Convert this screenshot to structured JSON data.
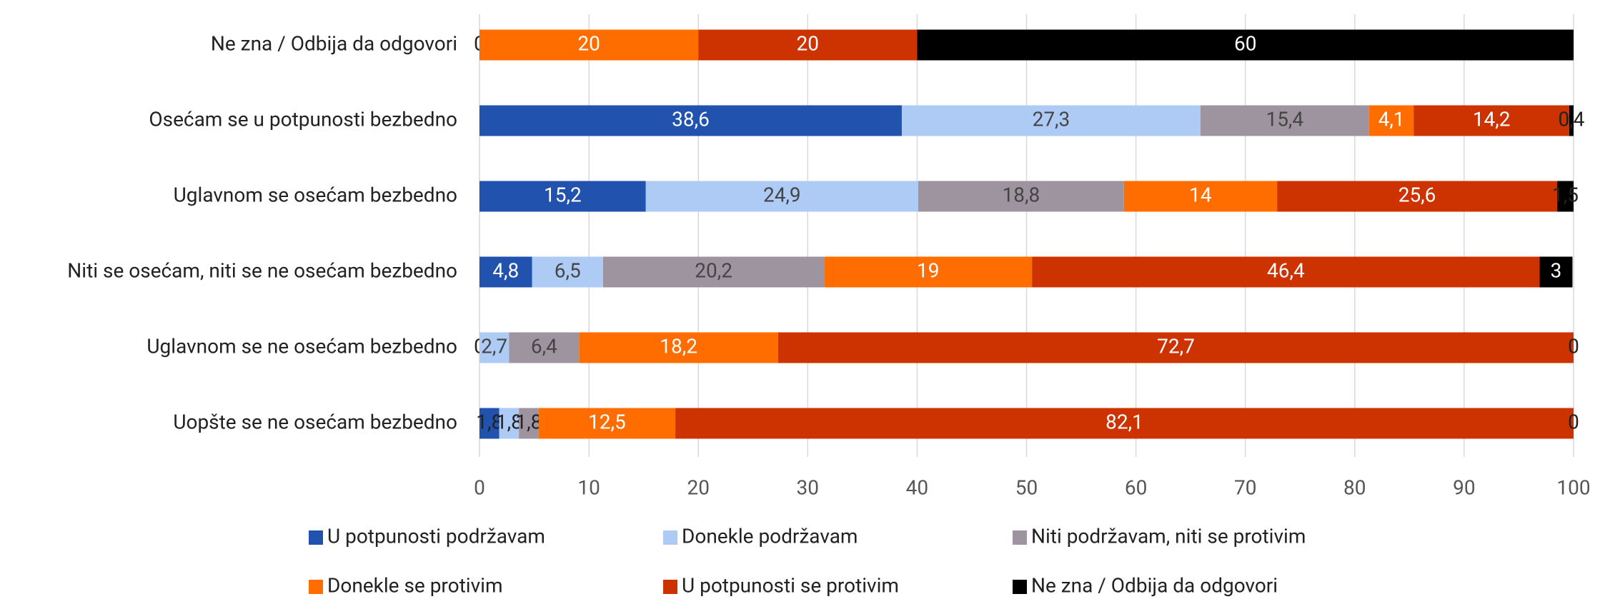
{
  "chart_data": {
    "type": "stacked_bar_horizontal",
    "categories": [
      "Ne zna / Odbija da odgovori",
      "Osećam se u potpunosti bezbedno",
      "Uglavnom se osećam bezbedno",
      "Niti se osećam, niti se ne osećam bezbedno",
      "Uglavnom se ne osećam bezbedno",
      "Uopšte se ne osećam bezbedno"
    ],
    "series": [
      {
        "name": "U potpunosti podržavam",
        "color": "#2152ad",
        "values": [
          0,
          38.6,
          15.2,
          4.8,
          0,
          1.8
        ],
        "value_labels": [
          "0",
          "38,6",
          "15,2",
          "4,8",
          "0",
          "1,8"
        ]
      },
      {
        "name": "Donekle podržavam",
        "color": "#aecbf5",
        "values": [
          null,
          27.3,
          24.9,
          6.5,
          2.7,
          1.8
        ],
        "value_labels": [
          null,
          "27,3",
          "24,9",
          "6,5",
          "2,7",
          "1,8"
        ]
      },
      {
        "name": "Niti podržavam, niti se protivim",
        "color": "#9e94a0",
        "values": [
          null,
          15.4,
          18.8,
          20.2,
          6.4,
          1.8
        ],
        "value_labels": [
          null,
          "15,4",
          "18,8",
          "20,2",
          "6,4",
          "1,8"
        ]
      },
      {
        "name": "Donekle se protivim",
        "color": "#ff6d01",
        "values": [
          20,
          4.1,
          14,
          19,
          18.2,
          12.5
        ],
        "value_labels": [
          "20",
          "4,1",
          "14",
          "19",
          "18,2",
          "12,5"
        ]
      },
      {
        "name": "U potpunosti se protivim",
        "color": "#cc3300",
        "values": [
          20,
          14.2,
          25.6,
          46.4,
          72.7,
          82.1
        ],
        "value_labels": [
          "20",
          "14,2",
          "25,6",
          "46,4",
          "72,7",
          "82,1"
        ]
      },
      {
        "name": "Ne zna / Odbija da odgovori",
        "color": "#000000",
        "values": [
          60,
          0.4,
          1.5,
          3,
          0,
          0
        ],
        "value_labels": [
          "60",
          "0,4",
          "1,5",
          "3",
          "0",
          "0"
        ]
      }
    ],
    "xlim": [
      0,
      100
    ],
    "xticks": [
      0,
      10,
      20,
      30,
      40,
      50,
      60,
      70,
      80,
      90,
      100
    ],
    "grid": true
  }
}
